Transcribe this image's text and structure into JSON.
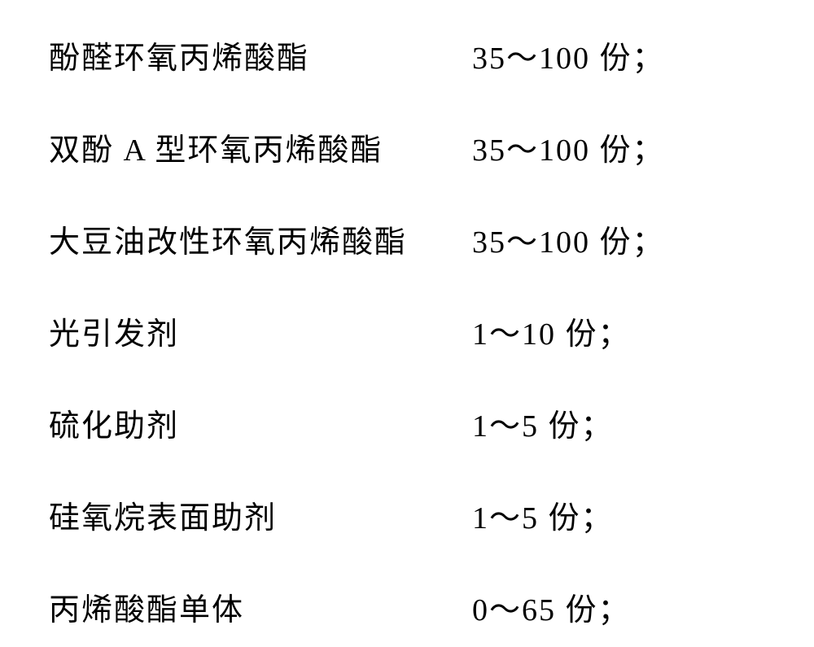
{
  "rows": [
    {
      "label": "酚醛环氧丙烯酸酯",
      "value": "35～100 份；"
    },
    {
      "label": "双酚 A 型环氧丙烯酸酯",
      "value": "35～100 份；"
    },
    {
      "label": "大豆油改性环氧丙烯酸酯",
      "value": "35～100 份；"
    },
    {
      "label": "光引发剂",
      "value": "1～10 份；"
    },
    {
      "label": "硫化助剂",
      "value": "1～5 份；"
    },
    {
      "label": "硅氧烷表面助剂",
      "value": "1～5 份；"
    },
    {
      "label": "丙烯酸酯单体",
      "value": "0～65 份；"
    }
  ],
  "style": {
    "font_size": 38,
    "text_color": "#000000",
    "background_color": "#ffffff",
    "label_width": 520,
    "row_spacing": 58
  }
}
